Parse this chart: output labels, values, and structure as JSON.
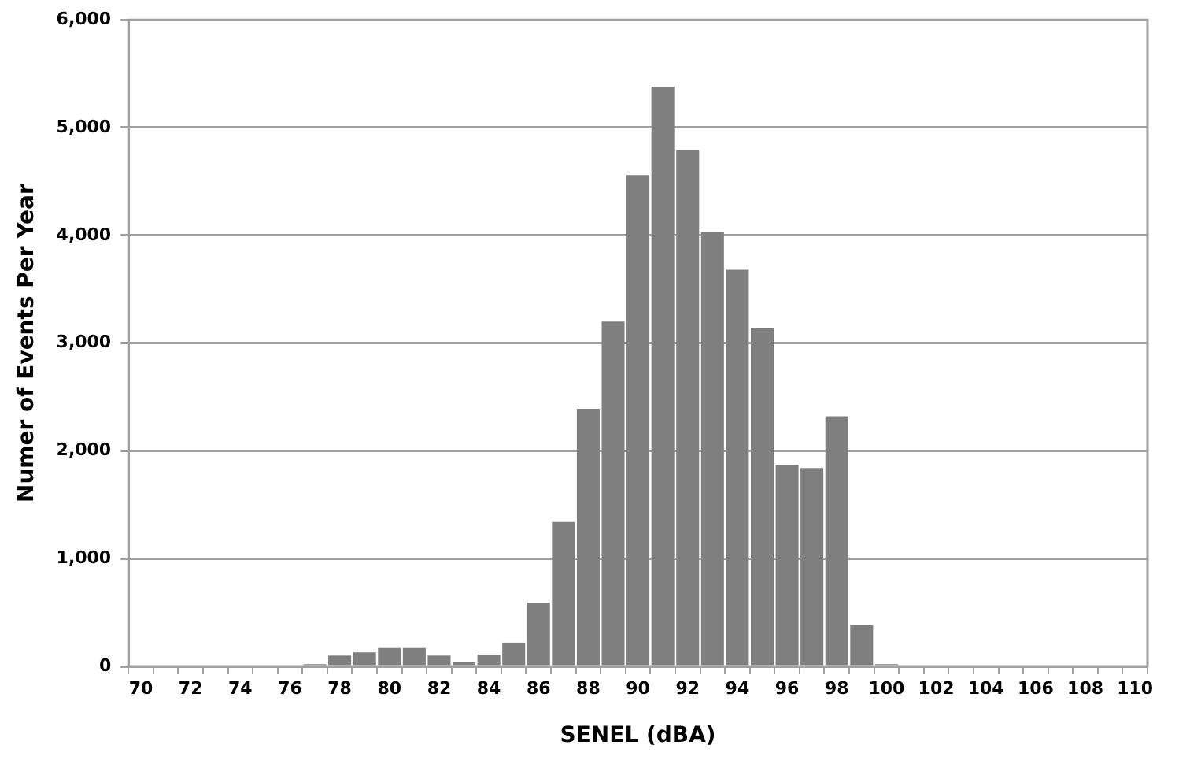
{
  "chart_data": {
    "type": "bar",
    "xlabel": "SENEL (dBA)",
    "ylabel": "Numer of Events Per Year",
    "categories": [
      "70",
      null,
      "72",
      null,
      "74",
      null,
      "76",
      null,
      "78",
      null,
      "80",
      null,
      "82",
      null,
      "84",
      null,
      "86",
      null,
      "88",
      null,
      "90",
      null,
      "92",
      null,
      "94",
      null,
      "96",
      null,
      "98",
      null,
      "100",
      null,
      "102",
      null,
      "104",
      null,
      "106",
      null,
      "108",
      null,
      "110"
    ],
    "values": [
      0,
      0,
      0,
      0,
      0,
      0,
      0,
      20,
      100,
      130,
      170,
      170,
      100,
      40,
      110,
      220,
      590,
      1340,
      2390,
      3200,
      4560,
      5380,
      4790,
      4030,
      3680,
      3140,
      1870,
      1840,
      2320,
      380,
      20,
      0,
      0,
      0,
      0,
      0,
      0,
      0,
      0,
      0,
      0
    ],
    "color": "#7f7f7f",
    "ylim": [
      0,
      6000
    ],
    "yticks": [
      {
        "value": 0,
        "label": "0"
      },
      {
        "value": 1000,
        "label": "1,000"
      },
      {
        "value": 2000,
        "label": "2,000"
      },
      {
        "value": 3000,
        "label": "3,000"
      },
      {
        "value": 4000,
        "label": "4,000"
      },
      {
        "value": 5000,
        "label": "5,000"
      },
      {
        "value": 6000,
        "label": "6,000"
      }
    ],
    "grid": "y",
    "legend": false
  }
}
